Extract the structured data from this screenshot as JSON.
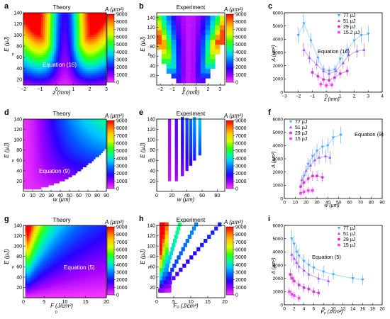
{
  "colors": {
    "colormap": [
      "#ff3cff",
      "#a000ff",
      "#2a00ff",
      "#0060ff",
      "#00c8ff",
      "#00ff90",
      "#3cff00",
      "#d8ff00",
      "#ffd000",
      "#ff7000",
      "#ff0000"
    ],
    "series": [
      "#4aa8ff",
      "#9a60ff",
      "#d040d0",
      "#ff40ff"
    ],
    "fit": [
      "#a8d4f8",
      "#c8a8f8",
      "#e088e8",
      "#ff98ff"
    ]
  },
  "colorbar": {
    "label": "A (µm²)",
    "ticks": [
      "9000",
      "8000",
      "7000",
      "6000",
      "5000",
      "4000",
      "3000",
      "2000",
      "1000",
      "0"
    ]
  },
  "panels": {
    "a": {
      "letter": "a",
      "title": "Theory",
      "equation": "Equation (16)",
      "xlabel": "z (mm)",
      "ylabel": "E (µJ)",
      "ylabel_sub": "p"
    },
    "b": {
      "letter": "b",
      "title": "Experiment",
      "xlabel": "z (mm)",
      "ylabel": "E (µJ)",
      "ylabel_sub": "p"
    },
    "c": {
      "letter": "c",
      "equation": "Equation (16)",
      "xlabel": "z (mm)",
      "ylabel": "A (µm²)"
    },
    "d": {
      "letter": "d",
      "title": "Theory",
      "equation": "Equation (9)",
      "xlabel": "w (µm)",
      "ylabel": "E (µJ)",
      "ylabel_sub": "p"
    },
    "e": {
      "letter": "e",
      "title": "Experiment",
      "xlabel": "w (µm)",
      "ylabel": "E (µJ)",
      "ylabel_sub": "p"
    },
    "f": {
      "letter": "f",
      "equation": "Equation (9)",
      "xlabel": "w (µm)",
      "ylabel": "A (µm²)"
    },
    "g": {
      "letter": "g",
      "title": "Theory",
      "equation": "Equation (5)",
      "xlabel": "F (J/cm²)",
      "xlabel_sub": "0",
      "ylabel": "E (µJ)",
      "ylabel_sub": "p"
    },
    "h": {
      "letter": "h",
      "title": "Experiment",
      "xlabel": "F₀ (J/cm²)",
      "ylabel": "E (µJ)",
      "ylabel_sub": "p"
    },
    "i": {
      "letter": "i",
      "equation": "Equation (5)",
      "xlabel": "F₀ (J/cm²)",
      "ylabel": "A (µm²)"
    }
  },
  "chart_data": [
    {
      "id": "a",
      "type": "heatmap",
      "title": "Theory",
      "xlabel": "z (mm)",
      "ylabel": "Ep (µJ)",
      "xlim": [
        -2,
        3
      ],
      "ylim": [
        10,
        140
      ],
      "xticks": [
        -2,
        -1,
        0,
        1,
        2,
        3
      ],
      "yticks": [
        20,
        40,
        60,
        80,
        100,
        120,
        140
      ],
      "colorbar_label": "A (µm²)",
      "crange": [
        0,
        9000
      ]
    },
    {
      "id": "b",
      "type": "heatmap",
      "title": "Experiment",
      "xlabel": "z (mm)",
      "ylabel": "Ep (µJ)",
      "xlim": [
        -2.3,
        3.4
      ],
      "ylim": [
        0,
        150
      ],
      "xticks": [
        -2,
        -1,
        0,
        1,
        2,
        3
      ],
      "yticks": [
        20,
        40,
        60,
        80,
        100,
        120,
        140
      ],
      "colorbar_label": "A (µm²)",
      "crange": [
        0,
        9000
      ],
      "x": [
        -2.0,
        -1.6,
        -1.2,
        -0.8,
        -0.4,
        0.0,
        0.4,
        0.8,
        1.2,
        1.6,
        2.0,
        2.4,
        2.8,
        3.2
      ],
      "y": [
        10,
        20,
        30,
        40,
        50,
        60,
        70,
        80,
        90,
        100,
        110,
        120,
        130,
        140
      ],
      "note": "cells present where value > 0"
    },
    {
      "id": "c",
      "type": "scatter",
      "xlabel": "z (mm)",
      "ylabel": "A (µm²)",
      "xlim": [
        -3,
        4
      ],
      "ylim": [
        0,
        6000
      ],
      "xticks": [
        -3,
        -2,
        -1,
        0,
        1,
        2,
        3,
        4
      ],
      "yticks": [
        0,
        1000,
        2000,
        3000,
        4000,
        5000,
        6000
      ],
      "legend": "top-right",
      "series": [
        {
          "name": "77 µJ",
          "marker": "triangle-down",
          "x": [
            -2.0,
            -1.6,
            -1.1,
            -0.6,
            -0.2,
            0.2,
            0.6,
            1.0,
            1.5,
            2.0,
            2.5,
            3.0
          ],
          "values": [
            4300,
            5200,
            3900,
            2600,
            1700,
            1600,
            1700,
            2500,
            3200,
            3900,
            4300,
            4400
          ]
        },
        {
          "name": "51 µJ",
          "marker": "triangle-up",
          "x": [
            -1.6,
            -1.2,
            -0.7,
            -0.2,
            0.2,
            0.7,
            1.2,
            1.6,
            2.2,
            2.7
          ],
          "values": [
            3200,
            2600,
            2100,
            1600,
            1400,
            1600,
            2200,
            2800,
            3100,
            3200
          ]
        },
        {
          "name": "29 µJ",
          "marker": "circle",
          "x": [
            -1.0,
            -0.6,
            -0.2,
            0.2,
            0.6,
            1.0,
            1.5
          ],
          "values": [
            1500,
            1200,
            950,
            900,
            1100,
            1400,
            1600
          ]
        },
        {
          "name": "15.2 µJ",
          "marker": "square",
          "x": [
            -0.4,
            0.0,
            0.4
          ],
          "values": [
            600,
            500,
            550
          ]
        }
      ]
    },
    {
      "id": "d",
      "type": "heatmap",
      "title": "Theory",
      "xlabel": "w (µm)",
      "ylabel": "Ep (µJ)",
      "xlim": [
        0,
        90
      ],
      "ylim": [
        0,
        140
      ],
      "xticks": [
        0,
        10,
        20,
        30,
        40,
        50,
        60,
        70,
        80,
        90
      ],
      "yticks": [
        20,
        40,
        60,
        80,
        100,
        120,
        140
      ],
      "colorbar_label": "A (µm²)",
      "crange": [
        0,
        9000
      ]
    },
    {
      "id": "e",
      "type": "heatmap",
      "title": "Experiment",
      "xlabel": "w (µm)",
      "ylabel": "Ep (µJ)",
      "xlim": [
        0,
        90
      ],
      "ylim": [
        0,
        140
      ],
      "xticks": [
        0,
        20,
        40,
        60,
        80
      ],
      "yticks": [
        20,
        40,
        60,
        80,
        100,
        120,
        140
      ],
      "colorbar_label": "A (µm²)",
      "crange": [
        0,
        9000
      ]
    },
    {
      "id": "f",
      "type": "scatter",
      "xlabel": "w (µm)",
      "ylabel": "A (µm²)",
      "xlim": [
        0,
        90
      ],
      "ylim": [
        0,
        6000
      ],
      "xticks": [
        0,
        10,
        20,
        30,
        40,
        50,
        60,
        70,
        80,
        90
      ],
      "yticks": [
        0,
        1000,
        2000,
        3000,
        4000,
        5000,
        6000
      ],
      "legend": "top-left",
      "series": [
        {
          "name": "77 µJ",
          "marker": "triangle-down",
          "x": [
            18,
            22,
            26,
            30,
            35,
            40,
            45,
            52
          ],
          "values": [
            1700,
            2600,
            3200,
            3600,
            3900,
            4000,
            4600,
            4800
          ]
        },
        {
          "name": "51 µJ",
          "marker": "triangle-up",
          "x": [
            16,
            20,
            24,
            28,
            32,
            38,
            42
          ],
          "values": [
            1400,
            2100,
            2500,
            2900,
            3100,
            3200,
            3100
          ]
        },
        {
          "name": "29 µJ",
          "marker": "circle",
          "x": [
            15,
            18,
            22,
            26,
            30,
            35
          ],
          "values": [
            900,
            1200,
            1500,
            1700,
            1700,
            1600
          ]
        },
        {
          "name": "15 µJ",
          "marker": "square",
          "x": [
            15,
            18,
            22,
            26
          ],
          "values": [
            400,
            500,
            600,
            600
          ]
        }
      ]
    },
    {
      "id": "g",
      "type": "heatmap",
      "title": "Theory",
      "xlabel": "F0 (J/cm²)",
      "ylabel": "Ep (µJ)",
      "xlim": [
        0,
        20
      ],
      "ylim": [
        0,
        140
      ],
      "xticks": [
        0,
        5,
        10,
        15,
        20
      ],
      "yticks": [
        20,
        40,
        60,
        80,
        100,
        120,
        140
      ],
      "colorbar_label": "A (µm²)",
      "crange": [
        0,
        9000
      ]
    },
    {
      "id": "h",
      "type": "heatmap",
      "title": "Experiment",
      "xlabel": "F₀ (J/cm²)",
      "ylabel": "Ep (µJ)",
      "xlim": [
        0,
        20
      ],
      "ylim": [
        0,
        140
      ],
      "xticks": [
        0,
        5,
        10,
        15,
        20
      ],
      "yticks": [
        20,
        40,
        60,
        80,
        100,
        120,
        140
      ],
      "colorbar_label": "A (µm²)",
      "crange": [
        0,
        9000
      ]
    },
    {
      "id": "i",
      "type": "scatter",
      "xlabel": "F₀ (J/cm²)",
      "ylabel": "A (µm²)",
      "xlim": [
        0,
        20
      ],
      "ylim": [
        0,
        6000
      ],
      "xticks": [
        0,
        2,
        4,
        6,
        8,
        10,
        12,
        14,
        16,
        18,
        20
      ],
      "yticks": [
        0,
        1000,
        2000,
        3000,
        4000,
        5000,
        6000
      ],
      "legend": "top-right",
      "series": [
        {
          "name": "77 µJ",
          "marker": "triangle-down",
          "x": [
            1.5,
            2,
            2.5,
            3,
            4,
            5,
            6,
            8,
            10,
            14,
            16
          ],
          "values": [
            5000,
            4600,
            4000,
            3700,
            3300,
            3000,
            2800,
            2500,
            2300,
            2000,
            1900
          ]
        },
        {
          "name": "51 µJ",
          "marker": "triangle-up",
          "x": [
            1.5,
            2,
            2.5,
            3,
            4,
            5,
            7,
            9
          ],
          "values": [
            3800,
            3500,
            3200,
            2900,
            2600,
            2300,
            2000,
            1800
          ]
        },
        {
          "name": "29 µJ",
          "marker": "circle",
          "x": [
            1.2,
            1.6,
            2,
            3,
            4,
            5,
            6,
            7
          ],
          "values": [
            2300,
            2000,
            1800,
            1500,
            1300,
            1200,
            1000,
            900
          ]
        },
        {
          "name": "15 µJ",
          "marker": "square",
          "x": [
            1,
            1.5,
            2,
            3
          ],
          "values": [
            1000,
            800,
            700,
            500
          ]
        }
      ]
    }
  ]
}
